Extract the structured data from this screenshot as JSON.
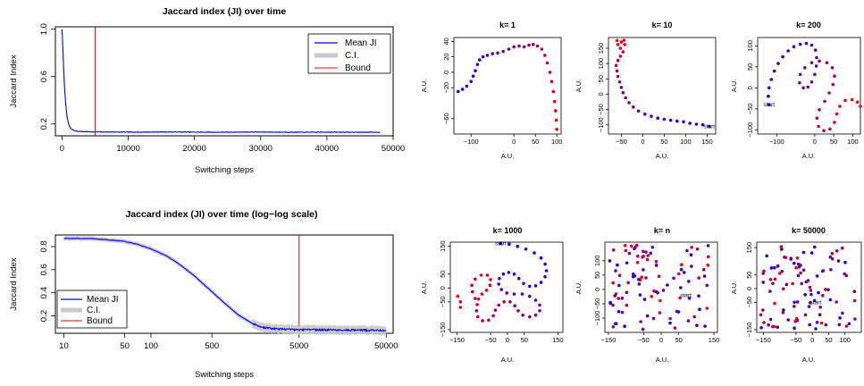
{
  "chart_data": [
    {
      "id": "ji-linear",
      "type": "line",
      "title": "Jaccard index (JI) over time",
      "xlabel": "Switching steps",
      "ylabel": "Jaccard Index",
      "xscale": "linear",
      "yscale": "linear",
      "xlim": [
        -1000,
        50000
      ],
      "ylim": [
        0.1,
        1.02
      ],
      "xticks": [
        0,
        10000,
        20000,
        30000,
        40000,
        50000
      ],
      "xtick_labels": [
        "0",
        "10000",
        "20000",
        "30000",
        "40000",
        "50000"
      ],
      "yticks": [
        0.2,
        0.6,
        1.0
      ],
      "ytick_labels": [
        "0.2",
        "0.6",
        "1.0"
      ],
      "legend": {
        "position": "top-right",
        "entries": [
          {
            "label": "Mean JI",
            "color": "#0000ff"
          },
          {
            "label": "C.I.",
            "color": "#c8c8c8"
          },
          {
            "label": "Bound",
            "color": "#ff0000"
          }
        ]
      },
      "bound_x": 5000,
      "series": [
        {
          "name": "Mean JI",
          "color": "#0000ff",
          "x": [
            0,
            100,
            200,
            300,
            400,
            500,
            600,
            700,
            800,
            1000,
            1200,
            1500,
            1800,
            2200,
            2700,
            3500,
            5000,
            8000,
            12000,
            16000,
            20000,
            24000,
            28000,
            32000,
            36000,
            40000,
            44000,
            48000
          ],
          "y": [
            1.0,
            0.88,
            0.73,
            0.6,
            0.49,
            0.41,
            0.34,
            0.29,
            0.25,
            0.2,
            0.17,
            0.155,
            0.145,
            0.14,
            0.137,
            0.135,
            0.133,
            0.132,
            0.131,
            0.133,
            0.131,
            0.13,
            0.132,
            0.131,
            0.13,
            0.131,
            0.13,
            0.13
          ]
        }
      ]
    },
    {
      "id": "ji-loglog",
      "type": "line",
      "title": "Jaccard index (JI) over time (log−log scale)",
      "xlabel": "Switching steps",
      "ylabel": "Jaccard Index",
      "xscale": "log",
      "yscale": "linear",
      "xlim": [
        8,
        60000
      ],
      "ylim": [
        0.05,
        0.9
      ],
      "xticks": [
        10,
        50,
        100,
        500,
        5000,
        50000
      ],
      "xtick_labels": [
        "10",
        "50",
        "100",
        "500",
        "5000",
        "50000"
      ],
      "yticks": [
        0.2,
        0.4,
        0.6,
        0.8
      ],
      "ytick_labels": [
        "0.2",
        "0.4",
        "0.6",
        "0.8"
      ],
      "legend": {
        "position": "bottom-left",
        "entries": [
          {
            "label": "Mean JI",
            "color": "#0000ff"
          },
          {
            "label": "C.I.",
            "color": "#c8c8c8"
          },
          {
            "label": "Bound",
            "color": "#ff0000"
          }
        ]
      },
      "bound_x": 5000,
      "series": [
        {
          "name": "Mean JI",
          "color": "#0000ff",
          "x": [
            10,
            20,
            30,
            50,
            70,
            100,
            150,
            200,
            300,
            500,
            700,
            1000,
            1500,
            2000,
            3000,
            5000,
            10000,
            20000,
            50000
          ],
          "y": [
            0.87,
            0.87,
            0.86,
            0.845,
            0.82,
            0.78,
            0.72,
            0.66,
            0.56,
            0.41,
            0.31,
            0.21,
            0.13,
            0.1,
            0.085,
            0.08,
            0.08,
            0.078,
            0.075
          ]
        }
      ]
    },
    {
      "id": "k1",
      "type": "scatter",
      "title": "k= 1",
      "xlabel": "A.U.",
      "ylabel": "A.U.",
      "xlim": [
        -140,
        110
      ],
      "ylim": [
        -80,
        45
      ],
      "xticks": [
        -100,
        0,
        50,
        100
      ],
      "xtick_labels": [
        "−100",
        "0",
        "50",
        "100"
      ],
      "yticks": [
        -60,
        -20,
        0,
        20,
        40
      ],
      "ytick_labels": [
        "−60",
        "−20",
        "0",
        "20",
        "40"
      ],
      "gradient": [
        "#0000ff",
        "#ff0000"
      ],
      "path": [
        [
          -130,
          -25
        ],
        [
          -120,
          -22
        ],
        [
          -110,
          -18
        ],
        [
          -100,
          -12
        ],
        [
          -95,
          -5
        ],
        [
          -90,
          2
        ],
        [
          -85,
          10
        ],
        [
          -80,
          16
        ],
        [
          -72,
          20
        ],
        [
          -62,
          22
        ],
        [
          -50,
          24
        ],
        [
          -38,
          25
        ],
        [
          -25,
          27
        ],
        [
          -12,
          30
        ],
        [
          0,
          33
        ],
        [
          12,
          34
        ],
        [
          24,
          33
        ],
        [
          35,
          35
        ],
        [
          45,
          36
        ],
        [
          55,
          34
        ],
        [
          65,
          30
        ],
        [
          72,
          22
        ],
        [
          78,
          12
        ],
        [
          84,
          0
        ],
        [
          88,
          -12
        ],
        [
          92,
          -25
        ],
        [
          95,
          -38
        ],
        [
          97,
          -50
        ],
        [
          99,
          -62
        ],
        [
          100,
          -74
        ]
      ],
      "start_label": ""
    },
    {
      "id": "k10",
      "type": "scatter",
      "title": "k= 10",
      "xlabel": "A.U.",
      "ylabel": "A.U.",
      "xlim": [
        -80,
        170
      ],
      "ylim": [
        -130,
        185
      ],
      "xticks": [
        -50,
        0,
        50,
        100,
        150
      ],
      "xtick_labels": [
        "−50",
        "0",
        "50",
        "100",
        "150"
      ],
      "yticks": [
        -100,
        -50,
        0,
        50,
        100,
        150
      ],
      "ytick_labels": [
        "−100",
        "−50",
        "0",
        "50",
        "100",
        "150"
      ],
      "gradient": [
        "#0000ff",
        "#ff0000"
      ],
      "path": [
        [
          155,
          -105
        ],
        [
          140,
          -100
        ],
        [
          125,
          -98
        ],
        [
          110,
          -95
        ],
        [
          95,
          -90
        ],
        [
          80,
          -88
        ],
        [
          65,
          -85
        ],
        [
          50,
          -82
        ],
        [
          35,
          -78
        ],
        [
          20,
          -72
        ],
        [
          5,
          -65
        ],
        [
          -10,
          -55
        ],
        [
          -22,
          -42
        ],
        [
          -32,
          -28
        ],
        [
          -40,
          -12
        ],
        [
          -46,
          5
        ],
        [
          -50,
          22
        ],
        [
          -54,
          40
        ],
        [
          -58,
          58
        ],
        [
          -60,
          76
        ],
        [
          -62,
          94
        ],
        [
          -58,
          110
        ],
        [
          -52,
          124
        ],
        [
          -46,
          138
        ],
        [
          -52,
          150
        ],
        [
          -58,
          162
        ],
        [
          -50,
          170
        ],
        [
          -42,
          162
        ],
        [
          -60,
          175
        ],
        [
          -44,
          176
        ]
      ],
      "start_label": "start",
      "start_point": [
        155,
        -105
      ]
    },
    {
      "id": "k200",
      "type": "scatter",
      "title": "k= 200",
      "xlabel": "A.U.",
      "ylabel": "A.U.",
      "xlim": [
        -150,
        120
      ],
      "ylim": [
        -110,
        120
      ],
      "xticks": [
        -100,
        0,
        50,
        100
      ],
      "xtick_labels": [
        "−100",
        "0",
        "50",
        "100"
      ],
      "yticks": [
        -100,
        -50,
        0,
        50,
        100
      ],
      "ytick_labels": [
        "−100",
        "−50",
        "0",
        "50",
        "100"
      ],
      "gradient": [
        "#0000ff",
        "#ff0000"
      ],
      "path": [
        [
          -120,
          -40
        ],
        [
          -122,
          -20
        ],
        [
          -120,
          0
        ],
        [
          -114,
          20
        ],
        [
          -106,
          40
        ],
        [
          -96,
          58
        ],
        [
          -84,
          74
        ],
        [
          -70,
          88
        ],
        [
          -55,
          98
        ],
        [
          -38,
          104
        ],
        [
          -22,
          106
        ],
        [
          -8,
          102
        ],
        [
          2,
          90
        ],
        [
          5,
          72
        ],
        [
          4,
          52
        ],
        [
          0,
          32
        ],
        [
          -8,
          14
        ],
        [
          -18,
          2
        ],
        [
          -30,
          0
        ],
        [
          -40,
          12
        ],
        [
          -38,
          32
        ],
        [
          -26,
          48
        ],
        [
          -8,
          60
        ],
        [
          12,
          64
        ],
        [
          32,
          60
        ],
        [
          46,
          48
        ],
        [
          52,
          28
        ],
        [
          48,
          8
        ],
        [
          38,
          -12
        ],
        [
          26,
          -32
        ],
        [
          12,
          -52
        ],
        [
          6,
          -72
        ],
        [
          10,
          -92
        ],
        [
          24,
          -102
        ],
        [
          40,
          -98
        ],
        [
          52,
          -82
        ],
        [
          58,
          -62
        ],
        [
          66,
          -44
        ],
        [
          80,
          -30
        ],
        [
          98,
          -28
        ],
        [
          112,
          -34
        ],
        [
          120,
          -44
        ]
      ],
      "start_label": "start",
      "start_point": [
        -120,
        -40
      ]
    },
    {
      "id": "k1000",
      "type": "scatter",
      "title": "k= 1000",
      "xlabel": "A.U.",
      "ylabel": "A.U.",
      "xlim": [
        -170,
        165
      ],
      "ylim": [
        -160,
        165
      ],
      "xticks": [
        -150,
        -50,
        0,
        50,
        150
      ],
      "xtick_labels": [
        "−150",
        "−50",
        "0",
        "50",
        "150"
      ],
      "yticks": [
        -150,
        -50,
        0,
        50,
        150
      ],
      "ytick_labels": [
        "−150",
        "−50",
        "0",
        "50",
        "150"
      ],
      "gradient": [
        "#0000ff",
        "#ff0000"
      ],
      "path": [
        [
          -20,
          160
        ],
        [
          5,
          158
        ],
        [
          30,
          150
        ],
        [
          55,
          140
        ],
        [
          80,
          126
        ],
        [
          100,
          108
        ],
        [
          112,
          86
        ],
        [
          116,
          62
        ],
        [
          112,
          40
        ],
        [
          100,
          20
        ],
        [
          84,
          8
        ],
        [
          66,
          6
        ],
        [
          48,
          16
        ],
        [
          34,
          34
        ],
        [
          20,
          50
        ],
        [
          4,
          56
        ],
        [
          -12,
          50
        ],
        [
          -24,
          34
        ],
        [
          -26,
          14
        ],
        [
          -18,
          -6
        ],
        [
          -2,
          -18
        ],
        [
          20,
          -22
        ],
        [
          44,
          -22
        ],
        [
          66,
          -30
        ],
        [
          84,
          -44
        ],
        [
          96,
          -62
        ],
        [
          96,
          -82
        ],
        [
          84,
          -98
        ],
        [
          66,
          -104
        ],
        [
          46,
          -98
        ],
        [
          32,
          -82
        ],
        [
          22,
          -64
        ],
        [
          8,
          -50
        ],
        [
          -10,
          -50
        ],
        [
          -26,
          -62
        ],
        [
          -36,
          -80
        ],
        [
          -42,
          -100
        ],
        [
          -56,
          -116
        ],
        [
          -74,
          -118
        ],
        [
          -88,
          -104
        ],
        [
          -92,
          -82
        ],
        [
          -90,
          -60
        ],
        [
          -96,
          -38
        ],
        [
          -104,
          -14
        ],
        [
          -106,
          10
        ],
        [
          -96,
          32
        ],
        [
          -78,
          46
        ],
        [
          -60,
          46
        ],
        [
          -50,
          30
        ],
        [
          -52,
          10
        ],
        [
          -62,
          -8
        ],
        [
          -76,
          -22
        ],
        [
          -86,
          -40
        ],
        [
          -140,
          -50
        ],
        [
          -148,
          -30
        ],
        [
          -140,
          -70
        ]
      ],
      "start_label": "start",
      "start_point": [
        -20,
        160
      ]
    },
    {
      "id": "kn",
      "type": "scatter",
      "title": "k= n",
      "xlabel": "A.U.",
      "ylabel": "A.U.",
      "xlim": [
        -160,
        160
      ],
      "ylim": [
        -150,
        165
      ],
      "xticks": [
        -150,
        -50,
        0,
        50,
        150
      ],
      "xtick_labels": [
        "−150",
        "−50",
        "0",
        "50",
        "150"
      ],
      "yticks": [
        -100,
        -50,
        0,
        50,
        100
      ],
      "ytick_labels": [
        "−100",
        "−50",
        "0",
        "50",
        "100"
      ],
      "gradient": [
        "#0000ff",
        "#ff0000"
      ],
      "seed": 37,
      "count": 100,
      "start_label": "start",
      "start_point": [
        70,
        -20
      ]
    },
    {
      "id": "k50000",
      "type": "scatter",
      "title": "k= 50000",
      "xlabel": "A.U.",
      "ylabel": "A.U.",
      "xlim": [
        -170,
        150
      ],
      "ylim": [
        -160,
        170
      ],
      "xticks": [
        -150,
        -50,
        0,
        50,
        100
      ],
      "xtick_labels": [
        "−150",
        "−50",
        "0",
        "50",
        "100"
      ],
      "yticks": [
        -150,
        -50,
        0,
        50,
        150
      ],
      "ytick_labels": [
        "−150",
        "−50",
        "0",
        "50",
        "150"
      ],
      "gradient": [
        "#0000ff",
        "#ff0000"
      ],
      "seed": 91,
      "count": 100,
      "start_label": "start",
      "start_point": [
        10,
        -50
      ]
    }
  ]
}
